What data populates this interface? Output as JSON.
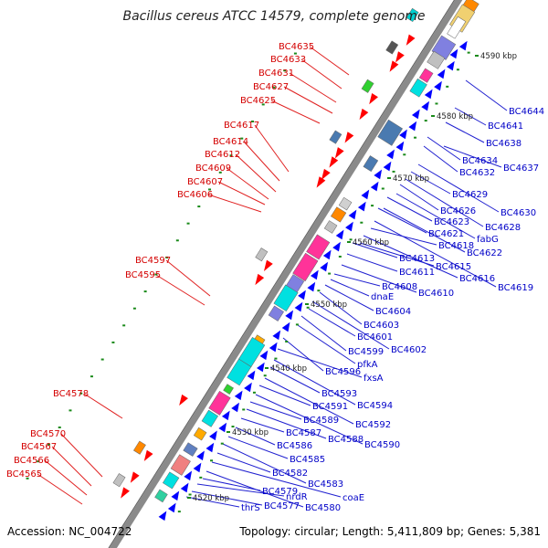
{
  "title": "Bacillus cereus ATCC 14579, complete genome",
  "footer": {
    "accession": "Accession: NC_004722",
    "summary": "Topology: circular; Length: 5,411,809 bp; Genes: 5,381"
  },
  "scale_labels": [
    "4520 kbp",
    "4530 kbp",
    "4540 kbp",
    "4550 kbp",
    "4560 kbp",
    "4570 kbp",
    "4580 kbp",
    "4590 kbp"
  ],
  "colors": {
    "backbone": "#8a8a8a",
    "forward_label": "#d40000",
    "reverse_label": "#0000c8",
    "forward_feature": "#ff0000",
    "reverse_feature": "#0000ff",
    "green_mark": "#1a8a1a"
  },
  "forward_genes": [
    "BC4635",
    "BC4633",
    "BC4631",
    "BC4627",
    "BC4625",
    "BC4617",
    "BC4614",
    "BC4612",
    "BC4609",
    "BC4607",
    "BC4606",
    "BC4597",
    "BC4595",
    "BC4578",
    "BC4570",
    "BC4567",
    "BC4566",
    "BC4565"
  ],
  "reverse_genes": [
    "BC4644",
    "BC4641",
    "BC4638",
    "BC4637",
    "BC4634",
    "BC4632",
    "BC4630",
    "BC4629",
    "BC4628",
    "BC4626",
    "fabG",
    "BC4623",
    "BC4622",
    "BC4621",
    "BC4619",
    "BC4618",
    "BC4616",
    "BC4615",
    "BC4613",
    "BC4611",
    "BC4610",
    "BC4608",
    "dnaE",
    "BC4604",
    "BC4603",
    "BC4602",
    "BC4601",
    "BC4599",
    "pfkA",
    "BC4596",
    "fxsA",
    "BC4594",
    "BC4593",
    "BC4592",
    "BC4591",
    "BC4590",
    "BC4589",
    "BC4588",
    "BC4587",
    "BC4586",
    "BC4585",
    "BC4583",
    "BC4582",
    "coaE",
    "BC4580",
    "BC4579",
    "nrdR",
    "BC4577",
    "thrS"
  ]
}
